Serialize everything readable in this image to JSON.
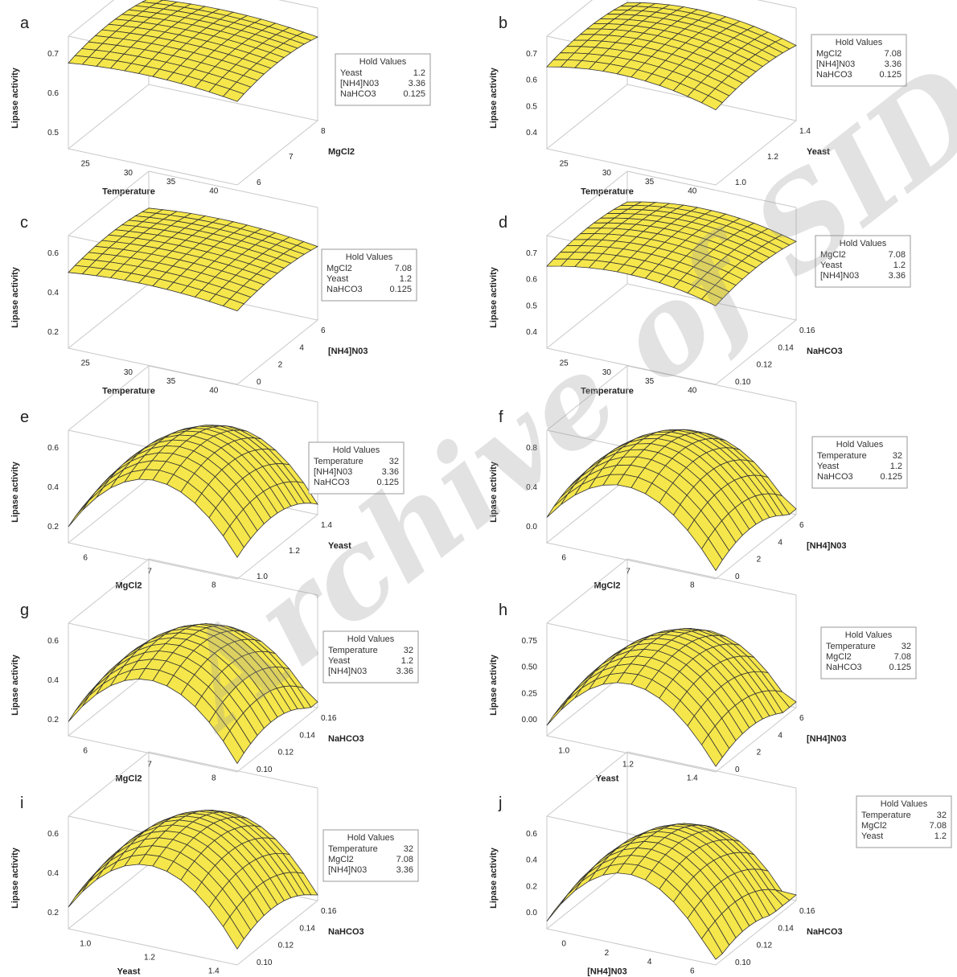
{
  "watermark": "Archive of SID",
  "hold_title": "Hold Values",
  "ylabel": "Lipase activity",
  "surface_color": "#f5e64b",
  "mesh_color": "#333333",
  "chart_data": [
    {
      "panel": "a",
      "type": "surface",
      "xlabel": "Temperature",
      "zlabel": "MgCl2",
      "x_ticks": [
        "25",
        "30",
        "35",
        "40"
      ],
      "z_ticks": [
        "6",
        "7",
        "8"
      ],
      "y_ticks": [
        "0.5",
        "0.6",
        "0.7"
      ],
      "hold_values": [
        [
          "Yeast",
          "1.2"
        ],
        [
          "[NH4]N03",
          "3.36"
        ],
        [
          "NaHCO3",
          "0.125"
        ]
      ]
    },
    {
      "panel": "b",
      "type": "surface",
      "xlabel": "Temperature",
      "zlabel": "Yeast",
      "x_ticks": [
        "25",
        "30",
        "35",
        "40"
      ],
      "z_ticks": [
        "1.0",
        "1.2",
        "1.4"
      ],
      "y_ticks": [
        "0.4",
        "0.5",
        "0.6",
        "0.7"
      ],
      "hold_values": [
        [
          "MgCl2",
          "7.08"
        ],
        [
          "[NH4]N03",
          "3.36"
        ],
        [
          "NaHCO3",
          "0.125"
        ]
      ]
    },
    {
      "panel": "c",
      "type": "surface",
      "xlabel": "Temperature",
      "zlabel": "[NH4]N03",
      "x_ticks": [
        "25",
        "30",
        "35",
        "40"
      ],
      "z_ticks": [
        "0",
        "2",
        "4",
        "6"
      ],
      "y_ticks": [
        "0.2",
        "0.4",
        "0.6"
      ],
      "hold_values": [
        [
          "MgCl2",
          "7.08"
        ],
        [
          "Yeast",
          "1.2"
        ],
        [
          "NaHCO3",
          "0.125"
        ]
      ]
    },
    {
      "panel": "d",
      "type": "surface",
      "xlabel": "Temperature",
      "zlabel": "NaHCO3",
      "x_ticks": [
        "25",
        "30",
        "35",
        "40"
      ],
      "z_ticks": [
        "0.10",
        "0.12",
        "0.14",
        "0.16"
      ],
      "y_ticks": [
        "0.4",
        "0.5",
        "0.6",
        "0.7"
      ],
      "hold_values": [
        [
          "MgCl2",
          "7.08"
        ],
        [
          "Yeast",
          "1.2"
        ],
        [
          "[NH4]N03",
          "3.36"
        ]
      ]
    },
    {
      "panel": "e",
      "type": "surface",
      "xlabel": "MgCl2",
      "zlabel": "Yeast",
      "x_ticks": [
        "6",
        "7",
        "8"
      ],
      "z_ticks": [
        "1.0",
        "1.2",
        "1.4"
      ],
      "y_ticks": [
        "0.2",
        "0.4",
        "0.6"
      ],
      "hold_values": [
        [
          "Temperature",
          "32"
        ],
        [
          "[NH4]N03",
          "3.36"
        ],
        [
          "NaHCO3",
          "0.125"
        ]
      ]
    },
    {
      "panel": "f",
      "type": "surface",
      "xlabel": "MgCl2",
      "zlabel": "[NH4]N03",
      "x_ticks": [
        "6",
        "7",
        "8"
      ],
      "z_ticks": [
        "0",
        "2",
        "4",
        "6"
      ],
      "y_ticks": [
        "0.0",
        "0.4",
        "0.8"
      ],
      "hold_values": [
        [
          "Temperature",
          "32"
        ],
        [
          "Yeast",
          "1.2"
        ],
        [
          "NaHCO3",
          "0.125"
        ]
      ]
    },
    {
      "panel": "g",
      "type": "surface",
      "xlabel": "MgCl2",
      "zlabel": "NaHCO3",
      "x_ticks": [
        "6",
        "7",
        "8"
      ],
      "z_ticks": [
        "0.10",
        "0.12",
        "0.14",
        "0.16"
      ],
      "y_ticks": [
        "0.2",
        "0.4",
        "0.6"
      ],
      "hold_values": [
        [
          "Temperature",
          "32"
        ],
        [
          "Yeast",
          "1.2"
        ],
        [
          "[NH4]N03",
          "3.36"
        ]
      ]
    },
    {
      "panel": "h",
      "type": "surface",
      "xlabel": "Yeast",
      "zlabel": "[NH4]N03",
      "x_ticks": [
        "1.0",
        "1.2",
        "1.4"
      ],
      "z_ticks": [
        "0",
        "2",
        "4",
        "6"
      ],
      "y_ticks": [
        "0.00",
        "0.25",
        "0.50",
        "0.75"
      ],
      "hold_values": [
        [
          "Temperature",
          "32"
        ],
        [
          "MgCl2",
          "7.08"
        ],
        [
          "NaHCO3",
          "0.125"
        ]
      ]
    },
    {
      "panel": "i",
      "type": "surface",
      "xlabel": "Yeast",
      "zlabel": "NaHCO3",
      "x_ticks": [
        "1.0",
        "1.2",
        "1.4"
      ],
      "z_ticks": [
        "0.10",
        "0.12",
        "0.14",
        "0.16"
      ],
      "y_ticks": [
        "0.2",
        "0.4",
        "0.6"
      ],
      "hold_values": [
        [
          "Temperature",
          "32"
        ],
        [
          "MgCl2",
          "7.08"
        ],
        [
          "[NH4]N03",
          "3.36"
        ]
      ]
    },
    {
      "panel": "j",
      "type": "surface",
      "xlabel": "[NH4]N03",
      "zlabel": "NaHCO3",
      "x_ticks": [
        "0",
        "2",
        "4",
        "6"
      ],
      "z_ticks": [
        "0.10",
        "0.12",
        "0.14",
        "0.16"
      ],
      "y_ticks": [
        "0.0",
        "0.2",
        "0.4",
        "0.6"
      ],
      "hold_values": [
        [
          "Temperature",
          "32"
        ],
        [
          "MgCl2",
          "7.08"
        ],
        [
          "Yeast",
          "1.2"
        ]
      ]
    }
  ]
}
